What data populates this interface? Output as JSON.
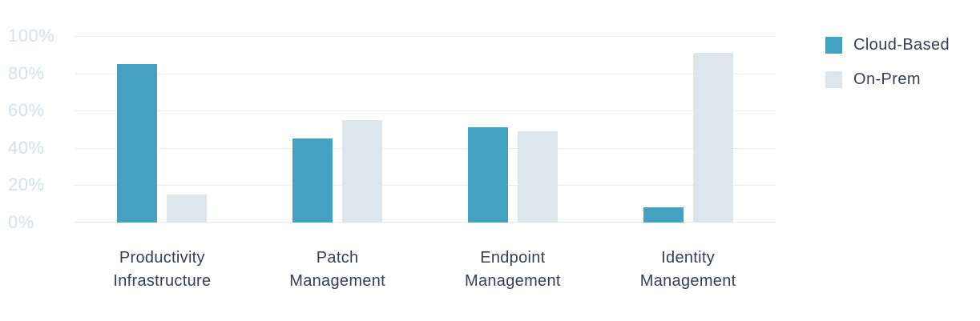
{
  "chart_data": {
    "type": "bar",
    "title": "",
    "categories": [
      "Productivity\nInfrastructure",
      "Patch\nManagement",
      "Endpoint\nManagement",
      "Identity\nManagement"
    ],
    "series": [
      {
        "name": "Cloud-Based",
        "color": "#44A1C2",
        "values": [
          85,
          45,
          51,
          8
        ]
      },
      {
        "name": "On-Prem",
        "color": "#DDE6EA",
        "values": [
          15,
          55,
          49,
          91
        ]
      }
    ],
    "xlabel": "",
    "ylabel": "",
    "y_axis": {
      "range": [
        0,
        100
      ],
      "tick_step": 20,
      "tick_labels": [
        "100%",
        "80%",
        "60%",
        "40%",
        "20%",
        "0%"
      ],
      "tick_text_color": "#D3E1E8"
    },
    "grid": "horizontal",
    "gridline_color": "#EDEDED",
    "legend": {
      "position": "right",
      "entries": [
        "Cloud-Based",
        "On-Prem"
      ]
    },
    "colors": {
      "cloud_based": "#44A1C2",
      "on_prem": "#DDE6EA",
      "category_text": "#353F54",
      "background": "#FFFFFF"
    }
  }
}
